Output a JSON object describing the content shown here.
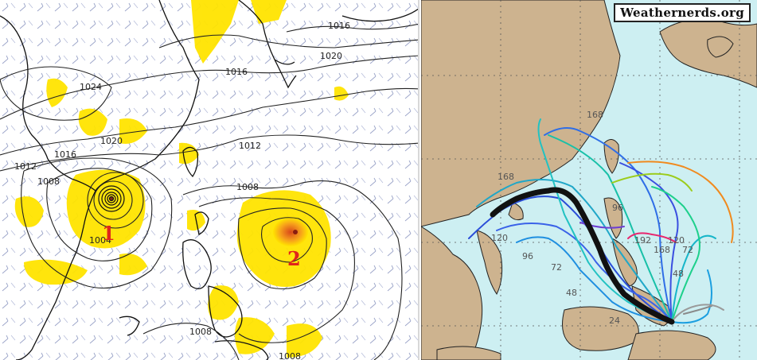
{
  "left_map": {
    "isobars": [
      "1016",
      "1020",
      "1016",
      "1024",
      "1020",
      "1016",
      "1012",
      "1008",
      "1012",
      "1008",
      "1004",
      "1008",
      "1008"
    ],
    "storm_markers": [
      "1",
      "2"
    ]
  },
  "right_map": {
    "watermark": "Weathernerds.org",
    "track_labels": [
      "168",
      "168",
      "120",
      "96",
      "72",
      "48",
      "24",
      "192",
      "168",
      "72",
      "48",
      "120",
      "96"
    ]
  },
  "colors": {
    "ocean": "#cdeff2",
    "land": "#cdb38f",
    "ensemble_mean": "#111111",
    "precip": "#ffe400",
    "storm_label": "#e0241b"
  }
}
